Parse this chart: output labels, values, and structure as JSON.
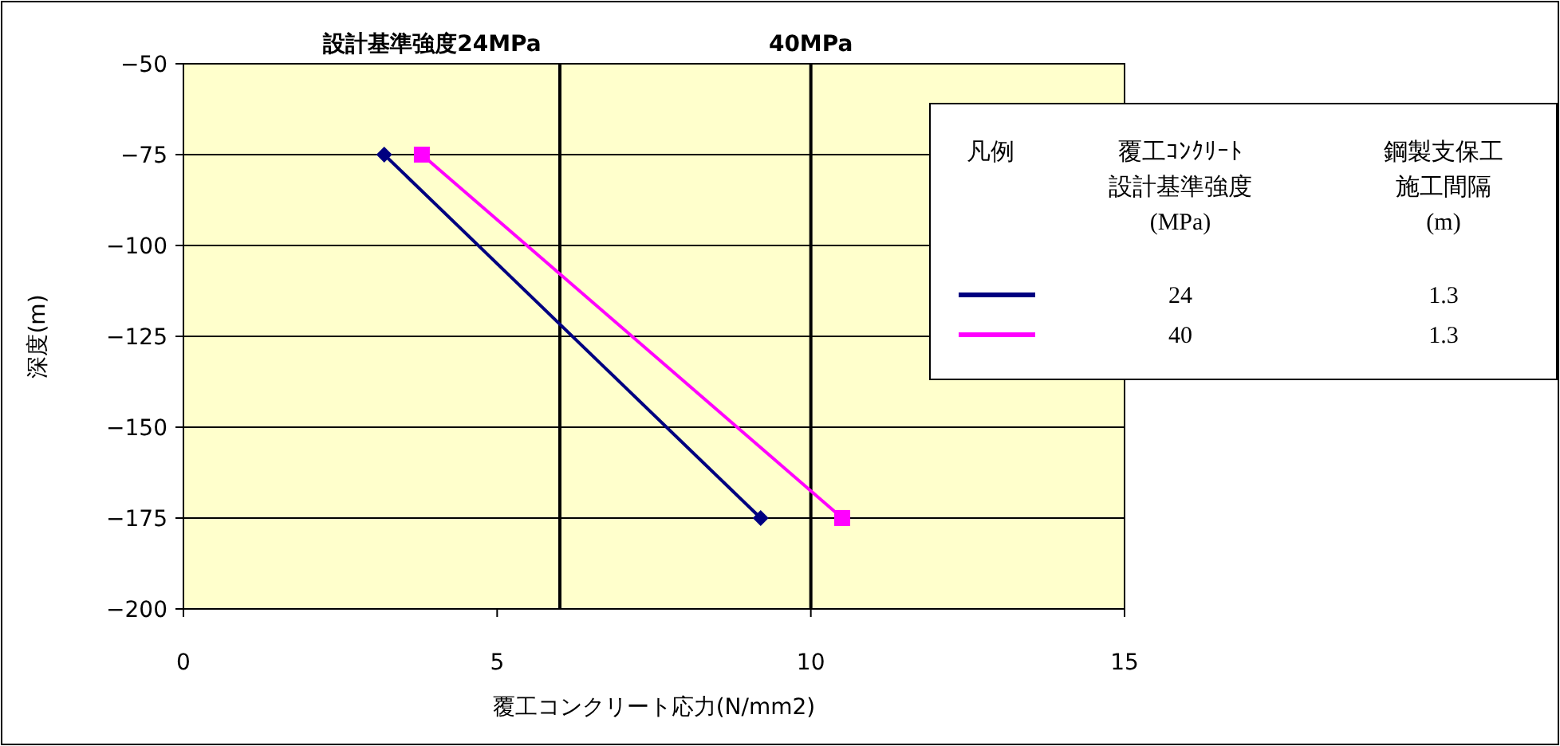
{
  "chart_data": {
    "type": "line",
    "xlabel": "覆工コンクリート応力(N/mm2)",
    "ylabel": "深度(m)",
    "xlim": [
      0,
      15
    ],
    "xticks": [
      0,
      5,
      10,
      15
    ],
    "ylim": [
      -200,
      -50
    ],
    "yticks": [
      -200,
      -175,
      -150,
      -125,
      -100,
      -75,
      -50
    ],
    "grid": "y",
    "legend": "top right",
    "legend_title": "凡例",
    "series": [
      {
        "name": "24",
        "color": "#000080",
        "marker": "diamond",
        "x": [
          3.2,
          9.2
        ],
        "values": [
          -75,
          -175
        ]
      },
      {
        "name": "40",
        "color": "#ff00ff",
        "marker": "square",
        "x": [
          3.8,
          10.5
        ],
        "values": [
          -75,
          -175
        ]
      }
    ],
    "ref_lines": [
      {
        "axis": "x",
        "value": 6,
        "label": "設計基準強度24MPa",
        "color": "#000000"
      },
      {
        "axis": "x",
        "value": 10,
        "label": "40MPa",
        "color": "#000000"
      }
    ],
    "annotations": [
      "覆工ｺﾝｸﾘｰﾄ",
      "設計基準強度",
      "(MPa)",
      "鋼製支保工",
      "施工間隔",
      "(m)",
      "1.3",
      "1.3"
    ]
  }
}
